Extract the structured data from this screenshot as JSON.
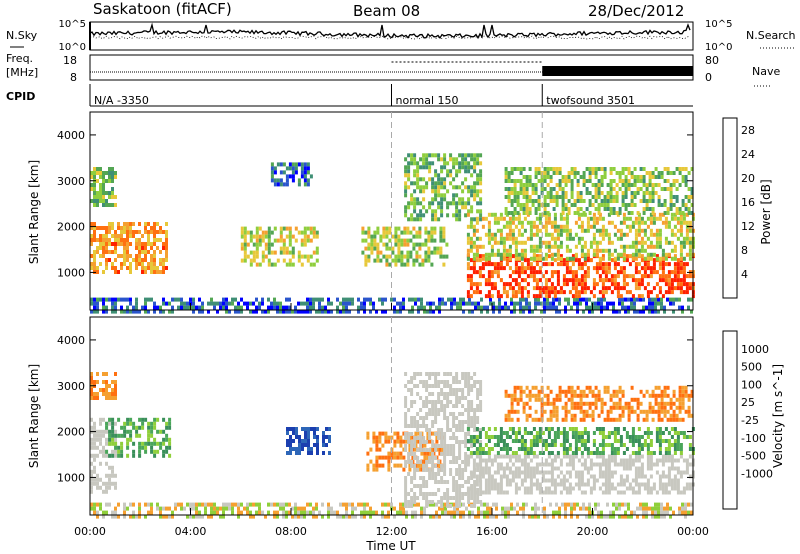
{
  "header": {
    "station": "Saskatoon (fitACF)",
    "beam": "Beam 08",
    "date": "28/Dec/2012"
  },
  "labels": {
    "nsky": "N.Sky",
    "nsearch": "N.Search",
    "freq": "Freq.",
    "freq_unit": "[MHz]",
    "nave": "Nave",
    "cpid": "CPID",
    "slant_range": "Slant Range [km]",
    "time_ut": "Time UT"
  },
  "noise_panel": {
    "left_ticks": [
      "10^5",
      "10^0"
    ],
    "right_ticks": [
      "10^5",
      "10^0"
    ]
  },
  "freq_panel": {
    "left_ticks": [
      "18",
      "8"
    ],
    "right_ticks": [
      "80",
      "0"
    ]
  },
  "cpid_segments": [
    {
      "label": "N/A -3350",
      "start_hour": 0
    },
    {
      "label": "normal 150",
      "start_hour": 12
    },
    {
      "label": "twofsound 3501",
      "start_hour": 18
    }
  ],
  "chart_data": [
    {
      "type": "heatmap",
      "title": "Power [dB]",
      "xlabel": "Time UT",
      "ylabel": "Slant Range [km]",
      "xlim": [
        0,
        24
      ],
      "ylim": [
        180,
        4500
      ],
      "x_ticks": [
        "00:00",
        "04:00",
        "08:00",
        "12:00",
        "16:00",
        "20:00",
        "00:00"
      ],
      "y_ticks": [
        1000,
        2000,
        3000,
        4000
      ],
      "colorbar": {
        "label": "Power [dB]",
        "ticks": [
          4,
          8,
          12,
          16,
          20,
          24,
          28
        ],
        "range": [
          0,
          30
        ],
        "colors": [
          "#0000ff",
          "#2a55cc",
          "#3f8f75",
          "#53a653",
          "#8fce3e",
          "#e7c83a",
          "#f5a030",
          "#ff7010",
          "#ff2000"
        ]
      },
      "regions": [
        {
          "t0": 0.0,
          "t1": 24.0,
          "r0": 180,
          "r1": 450,
          "level": 6
        },
        {
          "t0": 0.0,
          "t1": 3.0,
          "r0": 1000,
          "r1": 2100,
          "level": 22
        },
        {
          "t0": 0.0,
          "t1": 1.0,
          "r0": 2500,
          "r1": 3300,
          "level": 14
        },
        {
          "t0": 6.0,
          "t1": 9.0,
          "r0": 1200,
          "r1": 2000,
          "level": 17
        },
        {
          "t0": 7.2,
          "t1": 8.8,
          "r0": 2900,
          "r1": 3400,
          "level": 6
        },
        {
          "t0": 10.8,
          "t1": 14.2,
          "r0": 1200,
          "r1": 2000,
          "level": 16
        },
        {
          "t0": 12.5,
          "t1": 15.5,
          "r0": 2200,
          "r1": 3600,
          "level": 13
        },
        {
          "t0": 15.0,
          "t1": 24.0,
          "r0": 500,
          "r1": 1400,
          "level": 27
        },
        {
          "t0": 15.0,
          "t1": 24.0,
          "r0": 1300,
          "r1": 2300,
          "level": 17
        },
        {
          "t0": 16.5,
          "t1": 24.0,
          "r0": 2300,
          "r1": 3300,
          "level": 14
        }
      ]
    },
    {
      "type": "heatmap",
      "title": "Velocity [m s^-1]",
      "xlabel": "Time UT",
      "ylabel": "Slant Range [km]",
      "xlim": [
        0,
        24
      ],
      "ylim": [
        180,
        4500
      ],
      "x_ticks": [
        "00:00",
        "04:00",
        "08:00",
        "12:00",
        "16:00",
        "20:00",
        "00:00"
      ],
      "y_ticks": [
        1000,
        2000,
        3000,
        4000
      ],
      "colorbar": {
        "label": "Velocity [m s^-1]",
        "ticks": [
          "1000",
          "500",
          "100",
          "25",
          "-25",
          "-100",
          "-500",
          "-1000"
        ],
        "colors": [
          "#1b3fb0",
          "#2d66b8",
          "#3a8f5a",
          "#4aa65a",
          "#8fcf3a",
          "#c8c8c0",
          "#f5a030",
          "#ff7010",
          "#ff3010",
          "#ff0000"
        ]
      },
      "regions": [
        {
          "t0": 0.0,
          "t1": 24.0,
          "r0": 180,
          "r1": 450,
          "cat": "mix"
        },
        {
          "t0": 0.0,
          "t1": 1.0,
          "r0": 700,
          "r1": 2300,
          "cat": "gray"
        },
        {
          "t0": 0.6,
          "t1": 3.2,
          "r0": 1500,
          "r1": 2300,
          "cat": "green"
        },
        {
          "t0": 0.0,
          "t1": 1.0,
          "r0": 2700,
          "r1": 3300,
          "cat": "orange"
        },
        {
          "t0": 7.8,
          "t1": 9.5,
          "r0": 1500,
          "r1": 2100,
          "cat": "blue"
        },
        {
          "t0": 11.0,
          "t1": 14.0,
          "r0": 1200,
          "r1": 2000,
          "cat": "orange"
        },
        {
          "t0": 12.5,
          "t1": 15.5,
          "r0": 400,
          "r1": 3300,
          "cat": "gray"
        },
        {
          "t0": 15.0,
          "t1": 24.0,
          "r0": 700,
          "r1": 1500,
          "cat": "gray"
        },
        {
          "t0": 16.5,
          "t1": 24.0,
          "r0": 2300,
          "r1": 3000,
          "cat": "orange"
        },
        {
          "t0": 15.0,
          "t1": 24.0,
          "r0": 1500,
          "r1": 2100,
          "cat": "green"
        }
      ]
    }
  ]
}
